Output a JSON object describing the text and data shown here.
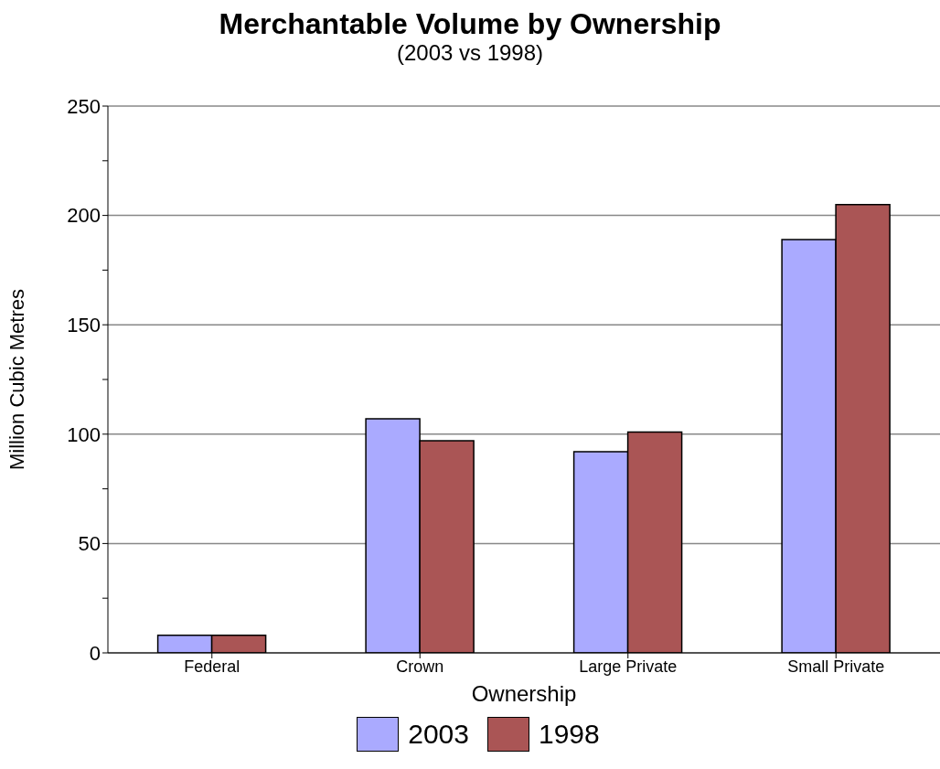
{
  "chart_data": {
    "type": "bar",
    "title": "Merchantable Volume by Ownership",
    "subtitle": "(2003 vs 1998)",
    "xlabel": "Ownership",
    "ylabel": "Million Cubic Metres",
    "categories": [
      "Federal",
      "Crown",
      "Large Private",
      "Small Private"
    ],
    "series": [
      {
        "name": "2003",
        "color": "#aaaaff",
        "values": [
          8,
          107,
          92,
          189
        ]
      },
      {
        "name": "1998",
        "color": "#aa5555",
        "values": [
          8,
          97,
          101,
          205
        ]
      }
    ],
    "ylim": [
      0,
      250
    ],
    "yticks": [
      0,
      {
        "value": 25,
        "label": null
      },
      50,
      {
        "value": 75,
        "label": null
      },
      100,
      {
        "value": 125,
        "label": null
      },
      150,
      {
        "value": 175,
        "label": null
      },
      200,
      {
        "value": 225,
        "label": null
      },
      250
    ],
    "grid": "y",
    "legend": "bottom"
  }
}
